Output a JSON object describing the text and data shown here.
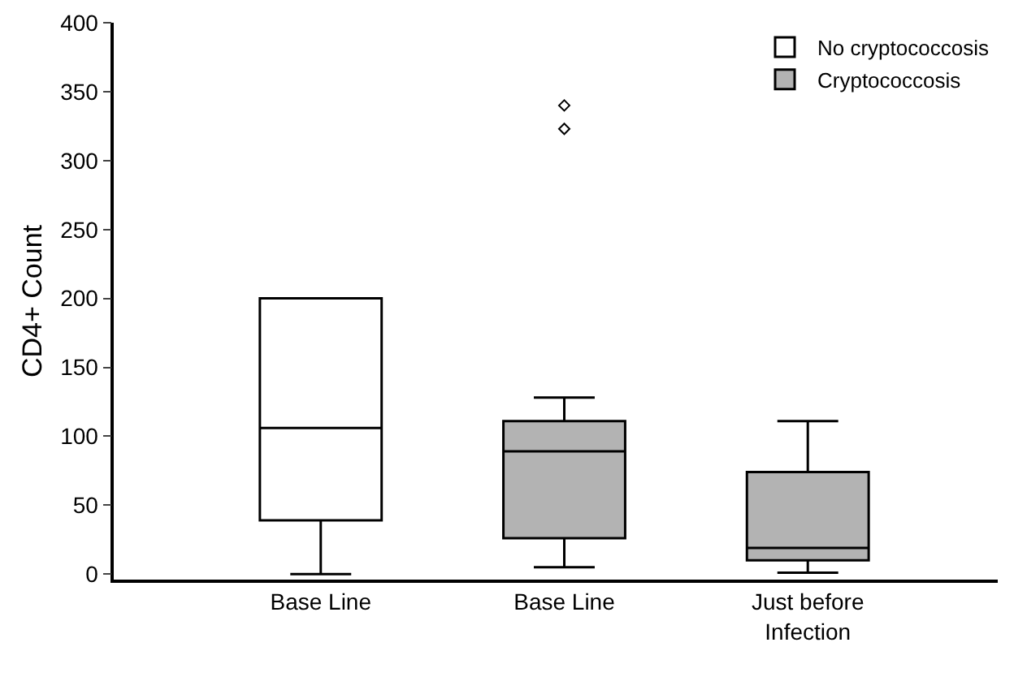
{
  "chart_data": {
    "type": "box",
    "ylabel": "CD4+ Count",
    "categories": [
      "Base Line",
      "Base Line",
      "Just before Infection"
    ],
    "series": [
      {
        "name": "No cryptococcosis",
        "color": "#ffffff",
        "boxes": [
          {
            "low": 0,
            "q1": 39,
            "median": 106,
            "q3": 200,
            "high": 200
          },
          null,
          null
        ]
      },
      {
        "name": "Cryptococcosis",
        "color": "#b3b3b3",
        "boxes": [
          null,
          {
            "low": 5,
            "q1": 26,
            "median": 89,
            "q3": 111,
            "high": 128,
            "outliers": [
              323,
              340
            ]
          },
          {
            "low": 1,
            "q1": 10,
            "median": 19,
            "q3": 74,
            "high": 111
          }
        ]
      }
    ],
    "ylim": [
      -4,
      400
    ],
    "yticks": [
      0,
      50,
      100,
      150,
      200,
      250,
      300,
      350,
      400
    ],
    "grid": false,
    "legend": "top right"
  }
}
